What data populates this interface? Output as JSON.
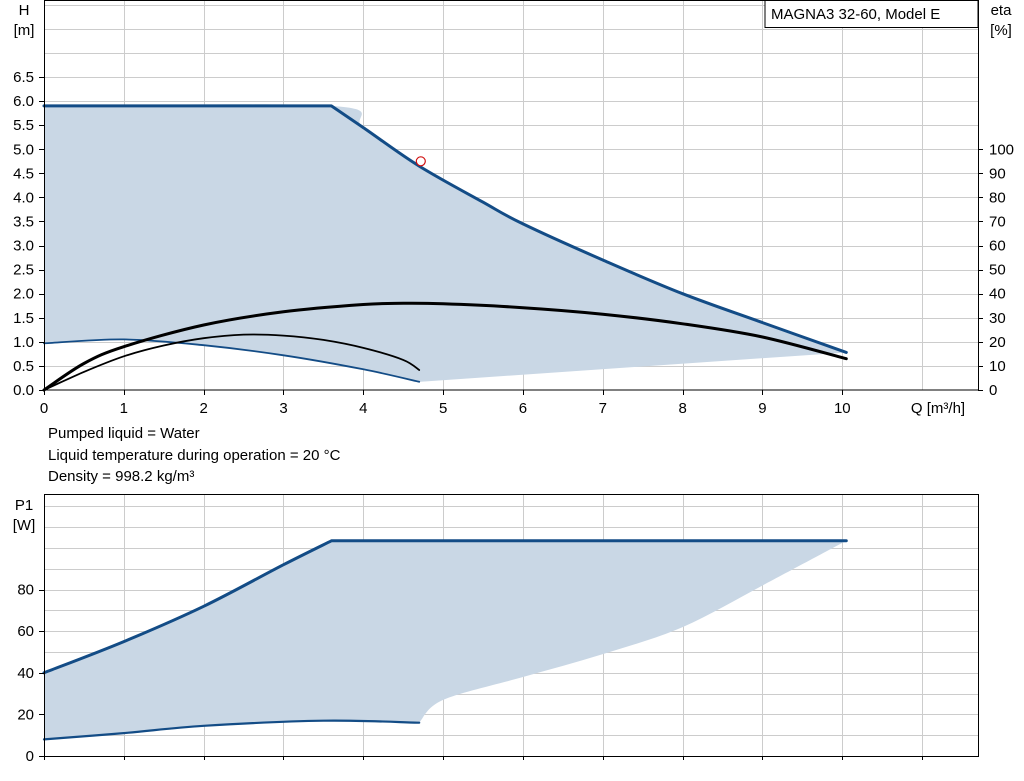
{
  "colors": {
    "curve_blue": "#134c86",
    "fill_blue": "#c9d7e5",
    "eta_black": "#000000",
    "grid": "#cccccc"
  },
  "info_lines": [
    "Pumped liquid = Water",
    "Liquid temperature during operation = 20 °C",
    "Density = 998.2 kg/m³"
  ],
  "chart_data": [
    {
      "type": "line",
      "title": "MAGNA3 32-60, Model E",
      "ylabel": [
        "H",
        "[m]"
      ],
      "y2label": [
        "eta",
        "[%]"
      ],
      "xlabel": "Q [m³/h]",
      "xlim": [
        0,
        11.7
      ],
      "ylim": [
        0,
        8.1
      ],
      "y2lim": [
        0,
        100
      ],
      "x_ticks": [
        0,
        1,
        2,
        3,
        4,
        5,
        6,
        7,
        8,
        9,
        10
      ],
      "y_ticks": [
        0.0,
        0.5,
        1.0,
        1.5,
        2.0,
        2.5,
        3.0,
        3.5,
        4.0,
        4.5,
        5.0,
        5.5,
        6.0,
        6.5
      ],
      "y_tick_labels": [
        "0.0",
        "0.5",
        "1.0",
        "1.5",
        "2.0",
        "2.5",
        "3.0",
        "3.5",
        "4.0",
        "4.5",
        "5.0",
        "5.5",
        "6.0",
        "6.5"
      ],
      "y2_ticks": [
        0,
        10,
        20,
        30,
        40,
        50,
        60,
        70,
        80,
        90,
        100
      ],
      "grid": true,
      "operating_range": {
        "upper": [
          [
            0,
            5.9
          ],
          [
            3.6,
            5.9
          ],
          [
            4.0,
            5.45
          ],
          [
            4.7,
            4.65
          ],
          [
            5.5,
            3.9
          ],
          [
            6.0,
            3.45
          ],
          [
            7.0,
            2.7
          ],
          [
            8.0,
            2.0
          ],
          [
            9.0,
            1.4
          ],
          [
            10.05,
            0.78
          ]
        ],
        "lower": [
          [
            10.05,
            0.78
          ],
          [
            8.0,
            0.65
          ],
          [
            6.0,
            0.45
          ],
          [
            4.7,
            0.17
          ],
          [
            4.0,
            0.43
          ],
          [
            3.0,
            0.72
          ],
          [
            2.0,
            0.93
          ],
          [
            1.0,
            1.05
          ],
          [
            0,
            0.97
          ]
        ]
      },
      "series": [
        {
          "role": "max-head",
          "axis": "H",
          "points": [
            [
              0,
              5.9
            ],
            [
              3.6,
              5.9
            ],
            [
              4.0,
              5.45
            ],
            [
              4.7,
              4.65
            ],
            [
              5.5,
              3.9
            ],
            [
              6.0,
              3.45
            ],
            [
              7.0,
              2.7
            ],
            [
              8.0,
              2.0
            ],
            [
              9.0,
              1.4
            ],
            [
              10.05,
              0.78
            ]
          ]
        },
        {
          "role": "min-head",
          "axis": "H",
          "points": [
            [
              0,
              0.97
            ],
            [
              1.0,
              1.05
            ],
            [
              2.0,
              0.93
            ],
            [
              3.0,
              0.72
            ],
            [
              4.0,
              0.43
            ],
            [
              4.7,
              0.17
            ]
          ]
        },
        {
          "role": "eta-max",
          "axis": "eta",
          "points": [
            [
              0,
              0
            ],
            [
              0.5,
              11
            ],
            [
              1.0,
              18
            ],
            [
              2.0,
              27
            ],
            [
              3.0,
              32.5
            ],
            [
              4.0,
              35.5
            ],
            [
              4.5,
              36
            ],
            [
              5.0,
              35.8
            ],
            [
              6.0,
              34.2
            ],
            [
              7.0,
              31.5
            ],
            [
              8.0,
              27.5
            ],
            [
              9.0,
              22
            ],
            [
              10.05,
              13
            ]
          ]
        },
        {
          "role": "eta-min",
          "axis": "eta",
          "points": [
            [
              0,
              0
            ],
            [
              0.5,
              7.5
            ],
            [
              1.0,
              14
            ],
            [
              1.5,
              18.5
            ],
            [
              2.0,
              21.5
            ],
            [
              2.5,
              23
            ],
            [
              3.0,
              22.6
            ],
            [
              3.5,
              20.8
            ],
            [
              4.0,
              17.5
            ],
            [
              4.5,
              12.5
            ],
            [
              4.7,
              8.3
            ]
          ]
        }
      ],
      "marker": {
        "x": 4.72,
        "y": 4.75
      }
    },
    {
      "type": "line",
      "ylabel": [
        "P1",
        "[W]"
      ],
      "xlim": [
        0,
        11.7
      ],
      "ylim": [
        0,
        126
      ],
      "y_ticks": [
        0,
        20,
        40,
        60,
        80
      ],
      "grid": true,
      "operating_range": {
        "upper": [
          [
            0,
            40
          ],
          [
            1,
            55
          ],
          [
            2,
            72
          ],
          [
            3,
            92
          ],
          [
            3.6,
            103.5
          ],
          [
            10.05,
            103.5
          ]
        ],
        "lower": [
          [
            10.05,
            103.5
          ],
          [
            9,
            82
          ],
          [
            8,
            62
          ],
          [
            7,
            49
          ],
          [
            6,
            38
          ],
          [
            5,
            27
          ],
          [
            4.7,
            16
          ],
          [
            3.5,
            17
          ],
          [
            2,
            14.5
          ],
          [
            1,
            11
          ],
          [
            0,
            8
          ]
        ]
      },
      "series": [
        {
          "role": "max-power",
          "points": [
            [
              0,
              40
            ],
            [
              1,
              55
            ],
            [
              2,
              72
            ],
            [
              3,
              92
            ],
            [
              3.6,
              103.5
            ],
            [
              10.05,
              103.5
            ]
          ]
        },
        {
          "role": "min-power",
          "points": [
            [
              0,
              8
            ],
            [
              1,
              11
            ],
            [
              2,
              14.5
            ],
            [
              3.5,
              17
            ],
            [
              4.7,
              16
            ]
          ]
        }
      ]
    }
  ]
}
